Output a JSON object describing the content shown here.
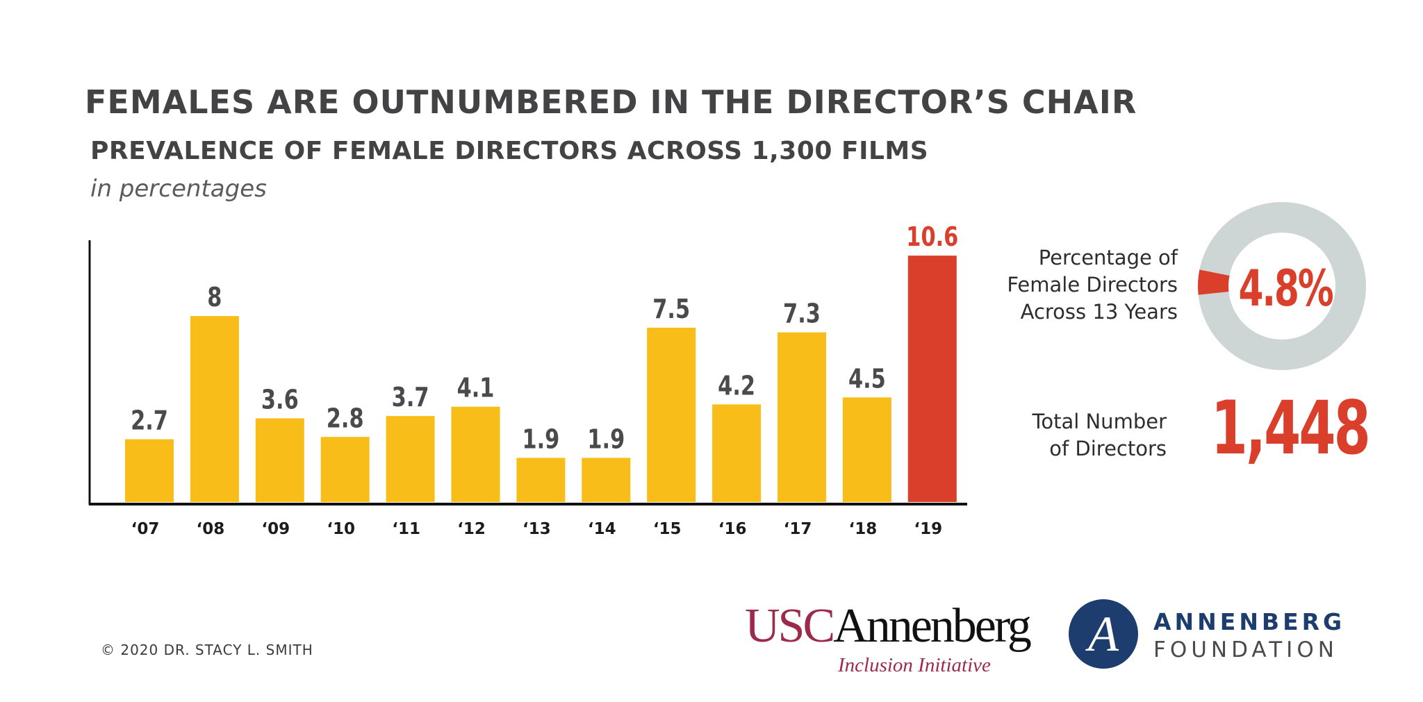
{
  "header": {
    "title": "FEMALES ARE OUTNUMBERED IN THE DIRECTOR’S CHAIR",
    "subtitle": "PREVALENCE OF FEMALE DIRECTORS ACROSS 1,300 FILMS",
    "units": "in percentages"
  },
  "chart_data": {
    "type": "bar",
    "title": "PREVALENCE OF FEMALE DIRECTORS ACROSS 1,300 FILMS",
    "xlabel": "",
    "ylabel": "",
    "categories": [
      "‘07",
      "‘08",
      "‘09",
      "‘10",
      "‘11",
      "‘12",
      "‘13",
      "‘14",
      "‘15",
      "‘16",
      "‘17",
      "‘18",
      "‘19"
    ],
    "values": [
      2.7,
      8,
      3.6,
      2.8,
      3.7,
      4.1,
      1.9,
      1.9,
      7.5,
      4.2,
      7.3,
      4.5,
      10.6
    ],
    "data_labels": [
      "2.7",
      "8",
      "3.6",
      "2.8",
      "3.7",
      "4.1",
      "1.9",
      "1.9",
      "7.5",
      "4.2",
      "7.3",
      "4.5",
      "10.6"
    ],
    "ylim": [
      0,
      11.5
    ],
    "grid": false,
    "legend": "none",
    "colors": {
      "bar": "#f9bd1a",
      "highlight": "#d93f2a",
      "highlight_index": 12,
      "label": "#4a4a4c",
      "axis": "#111111"
    }
  },
  "stats": {
    "percentage": {
      "label_lines": [
        "Percentage of",
        "Female Directors",
        "Across 13 Years"
      ],
      "value": 4.8,
      "value_text": "4.8%",
      "colors": {
        "fill": "#d93f2a",
        "track": "#cdd5d5"
      }
    },
    "total": {
      "label_lines": [
        "Total Number",
        "of Directors"
      ],
      "value_text": "1,448"
    }
  },
  "footer": {
    "copyright": "© 2020 DR. STACY L. SMITH",
    "usc_logo": {
      "usc": "USC",
      "annenberg": "Annenberg",
      "subtitle": "Inclusion Initiative"
    },
    "foundation_logo": {
      "mark": "A",
      "name": "ANNENBERG",
      "sub": "FOUNDATION"
    }
  }
}
